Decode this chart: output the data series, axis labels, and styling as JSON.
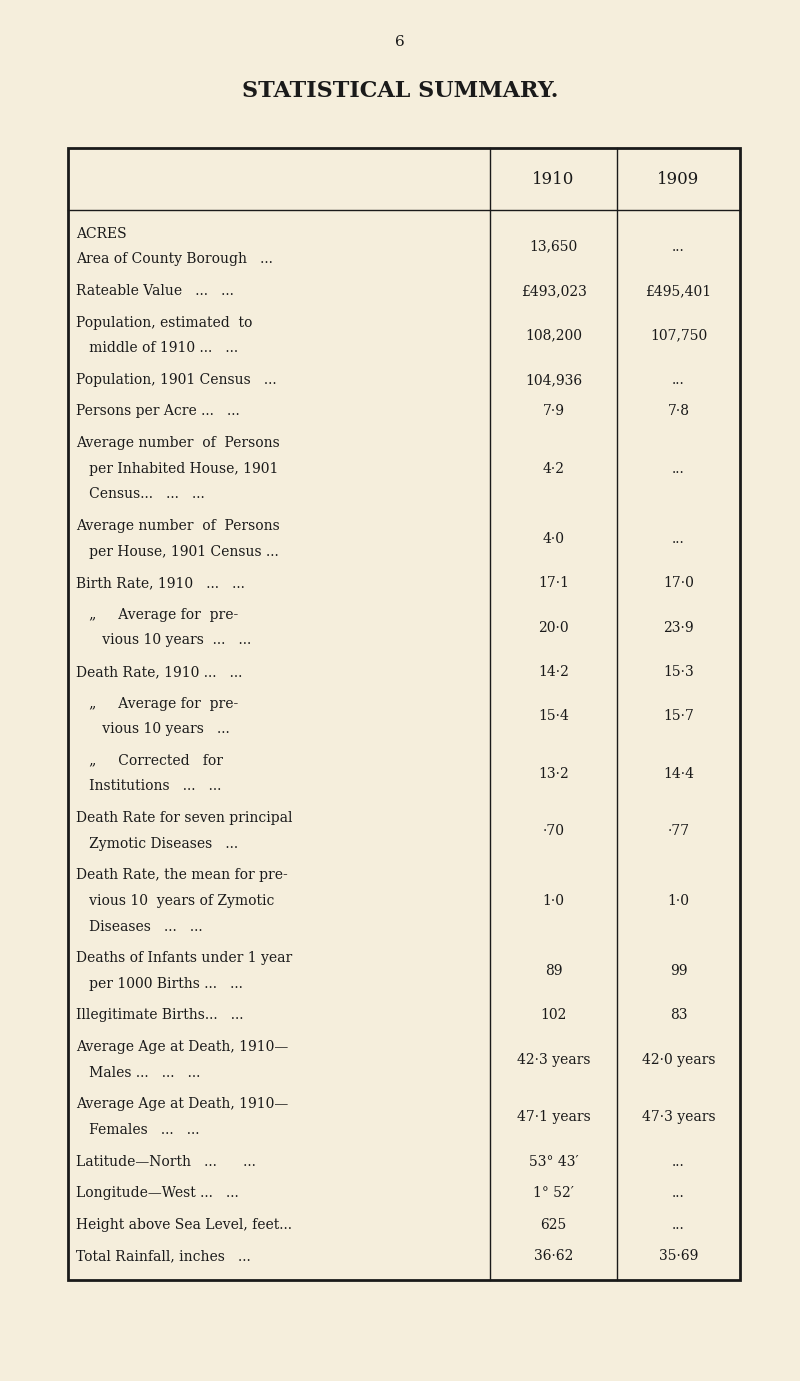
{
  "bg_color": "#f5eedc",
  "text_color": "#1a1a1a",
  "page_number": "6",
  "title": "STATISTICAL SUMMARY.",
  "col_headers": [
    "1910",
    "1909"
  ],
  "rows": [
    {
      "lines": [
        "ACRES",
        "Area of County Borough   ..."
      ],
      "val1910": "13,650",
      "val1909": "..."
    },
    {
      "lines": [
        "Rateable Value   ...   ..."
      ],
      "val1910": "£493,023",
      "val1909": "£495,401"
    },
    {
      "lines": [
        "Population, estimated  to",
        "   middle of 1910 ...   ..."
      ],
      "val1910": "108,200",
      "val1909": "107,750"
    },
    {
      "lines": [
        "Population, 1901 Census   ..."
      ],
      "val1910": "104,936",
      "val1909": "..."
    },
    {
      "lines": [
        "Persons per Acre ...   ..."
      ],
      "val1910": "7·9",
      "val1909": "7·8"
    },
    {
      "lines": [
        "Average number  of  Persons",
        "   per Inhabited House, 1901",
        "   Census...   ...   ..."
      ],
      "val1910": "4·2",
      "val1909": "..."
    },
    {
      "lines": [
        "Average number  of  Persons",
        "   per House, 1901 Census ..."
      ],
      "val1910": "4·0",
      "val1909": "..."
    },
    {
      "lines": [
        "Birth Rate, 1910   ...   ..."
      ],
      "val1910": "17·1",
      "val1909": "17·0"
    },
    {
      "lines": [
        "   „     Average for  pre-",
        "      vious 10 years  ...   ..."
      ],
      "val1910": "20·0",
      "val1909": "23·9"
    },
    {
      "lines": [
        "Death Rate, 1910 ...   ..."
      ],
      "val1910": "14·2",
      "val1909": "15·3"
    },
    {
      "lines": [
        "   „     Average for  pre-",
        "      vious 10 years   ..."
      ],
      "val1910": "15·4",
      "val1909": "15·7"
    },
    {
      "lines": [
        "   „     Corrected   for",
        "   Institutions   ...   ..."
      ],
      "val1910": "13·2",
      "val1909": "14·4"
    },
    {
      "lines": [
        "Death Rate for seven principal",
        "   Zymotic Diseases   ..."
      ],
      "val1910": "·70",
      "val1909": "·77"
    },
    {
      "lines": [
        "Death Rate, the mean for pre-",
        "   vious 10  years of Zymotic",
        "   Diseases   ...   ..."
      ],
      "val1910": "1·0",
      "val1909": "1·0"
    },
    {
      "lines": [
        "Deaths of Infants under 1 year",
        "   per 1000 Births ...   ..."
      ],
      "val1910": "89",
      "val1909": "99"
    },
    {
      "lines": [
        "Illegitimate Births...   ..."
      ],
      "val1910": "102",
      "val1909": "83"
    },
    {
      "lines": [
        "Average Age at Death, 1910—",
        "   Males ...   ...   ..."
      ],
      "val1910": "42·3 years",
      "val1909": "42·0 years"
    },
    {
      "lines": [
        "Average Age at Death, 1910—",
        "   Females   ...   ..."
      ],
      "val1910": "47·1 years",
      "val1909": "47·3 years"
    },
    {
      "lines": [
        "Latitude—North   ...      ..."
      ],
      "val1910": "53° 43′",
      "val1909": "..."
    },
    {
      "lines": [
        "Longitude—West ...   ..."
      ],
      "val1910": "1° 52′",
      "val1909": "..."
    },
    {
      "lines": [
        "Height above Sea Level, feet..."
      ],
      "val1910": "625",
      "val1909": "..."
    },
    {
      "lines": [
        "Total Rainfall, inches   ..."
      ],
      "val1910": "36·62",
      "val1909": "35·69"
    }
  ]
}
